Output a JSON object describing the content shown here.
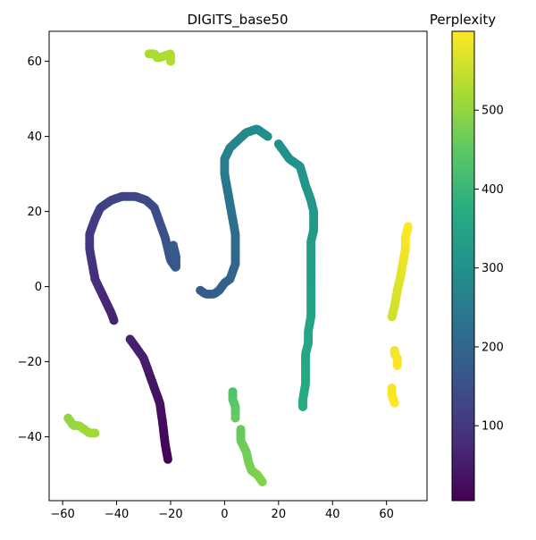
{
  "chart_data": {
    "type": "scatter",
    "title": "DIGITS_base50",
    "xlabel": "",
    "ylabel": "",
    "xlim": [
      -65,
      75
    ],
    "ylim": [
      -57,
      68
    ],
    "xticks": [
      -60,
      -40,
      -20,
      0,
      20,
      40,
      60
    ],
    "yticks": [
      -40,
      -20,
      0,
      20,
      40,
      60
    ],
    "colorbar": {
      "label": "Perplexity",
      "range": [
        5,
        600
      ],
      "ticks": [
        100,
        200,
        300,
        400,
        500
      ],
      "colormap": "viridis"
    },
    "point_color_value": "perplexity",
    "segments": [
      {
        "p0": 5,
        "p1": 60,
        "points": [
          [
            -21,
            -46
          ],
          [
            -22,
            -42
          ],
          [
            -23,
            -36
          ],
          [
            -24,
            -31
          ],
          [
            -26,
            -27
          ],
          [
            -28,
            -23
          ],
          [
            -30,
            -19
          ],
          [
            -32,
            -17
          ],
          [
            -34,
            -15
          ],
          [
            -35,
            -14
          ]
        ]
      },
      {
        "p0": 60,
        "p1": 110,
        "points": [
          [
            -41,
            -9
          ],
          [
            -42,
            -7
          ],
          [
            -44,
            -4
          ],
          [
            -46,
            -1
          ],
          [
            -48,
            2
          ],
          [
            -49,
            6
          ],
          [
            -50,
            10
          ],
          [
            -50,
            14
          ],
          [
            -48,
            18
          ]
        ]
      },
      {
        "p0": 110,
        "p1": 175,
        "points": [
          [
            -48,
            18
          ],
          [
            -46,
            21
          ],
          [
            -42,
            23
          ],
          [
            -38,
            24
          ],
          [
            -33,
            24
          ],
          [
            -29,
            23
          ],
          [
            -26,
            21
          ],
          [
            -24,
            17
          ],
          [
            -22,
            13
          ],
          [
            -21,
            10
          ],
          [
            -20,
            7
          ],
          [
            -18,
            5
          ],
          [
            -18,
            8
          ],
          [
            -19,
            11
          ]
        ]
      },
      {
        "p0": 175,
        "p1": 235,
        "points": [
          [
            -9,
            -1
          ],
          [
            -7,
            -2
          ],
          [
            -4,
            -2
          ],
          [
            -2,
            -1
          ],
          [
            0,
            1
          ],
          [
            2,
            2
          ],
          [
            3,
            4
          ],
          [
            4,
            6
          ],
          [
            4,
            10
          ],
          [
            4,
            14
          ],
          [
            3,
            18
          ],
          [
            2,
            22
          ],
          [
            1,
            26
          ]
        ]
      },
      {
        "p0": 235,
        "p1": 300,
        "points": [
          [
            1,
            26
          ],
          [
            0,
            30
          ],
          [
            0,
            34
          ],
          [
            2,
            37
          ],
          [
            5,
            39
          ],
          [
            8,
            41
          ],
          [
            12,
            42
          ],
          [
            14,
            41
          ],
          [
            16,
            40
          ]
        ]
      },
      {
        "p0": 300,
        "p1": 370,
        "points": [
          [
            20,
            38
          ],
          [
            22,
            36
          ],
          [
            24,
            34
          ],
          [
            26,
            33
          ],
          [
            28,
            32
          ],
          [
            30,
            27
          ],
          [
            31,
            25
          ],
          [
            32,
            23
          ],
          [
            33,
            20
          ],
          [
            33,
            18
          ],
          [
            33,
            15
          ],
          [
            32,
            12
          ],
          [
            32,
            8
          ],
          [
            32,
            4
          ],
          [
            32,
            0
          ],
          [
            32,
            -4
          ],
          [
            32,
            -8
          ],
          [
            31,
            -12
          ],
          [
            31,
            -15
          ],
          [
            30,
            -18
          ],
          [
            30,
            -22
          ],
          [
            30,
            -26
          ],
          [
            29,
            -30
          ],
          [
            29,
            -32
          ]
        ]
      },
      {
        "p0": 430,
        "p1": 455,
        "points": [
          [
            3,
            -28
          ],
          [
            3,
            -30
          ],
          [
            4,
            -32
          ],
          [
            4,
            -35
          ]
        ]
      },
      {
        "p0": 455,
        "p1": 485,
        "points": [
          [
            6,
            -38
          ],
          [
            6,
            -41
          ],
          [
            8,
            -44
          ],
          [
            9,
            -47
          ],
          [
            10,
            -49
          ],
          [
            12,
            -50
          ],
          [
            14,
            -52
          ]
        ]
      },
      {
        "p0": 500,
        "p1": 515,
        "points": [
          [
            -58,
            -35
          ],
          [
            -56,
            -37
          ],
          [
            -54,
            -37
          ],
          [
            -52,
            -38
          ],
          [
            -50,
            -39
          ],
          [
            -48,
            -39
          ]
        ]
      },
      {
        "p0": 520,
        "p1": 530,
        "points": [
          [
            -28,
            62
          ],
          [
            -26,
            62
          ],
          [
            -25,
            61
          ],
          [
            -24,
            61
          ],
          [
            -20,
            62
          ],
          [
            -20,
            61
          ],
          [
            -20,
            60
          ]
        ]
      },
      {
        "p0": 555,
        "p1": 600,
        "points": [
          [
            62,
            -8
          ],
          [
            63,
            -5
          ],
          [
            64,
            -1
          ],
          [
            65,
            2
          ],
          [
            66,
            6
          ],
          [
            67,
            10
          ],
          [
            67,
            13
          ],
          [
            68,
            16
          ]
        ]
      },
      {
        "p0": 585,
        "p1": 600,
        "points": [
          [
            63,
            -17
          ],
          [
            63,
            -18
          ],
          [
            64,
            -19
          ],
          [
            64,
            -21
          ]
        ]
      },
      {
        "p0": 590,
        "p1": 600,
        "points": [
          [
            62,
            -27
          ],
          [
            62,
            -29
          ],
          [
            63,
            -31
          ]
        ]
      }
    ]
  }
}
